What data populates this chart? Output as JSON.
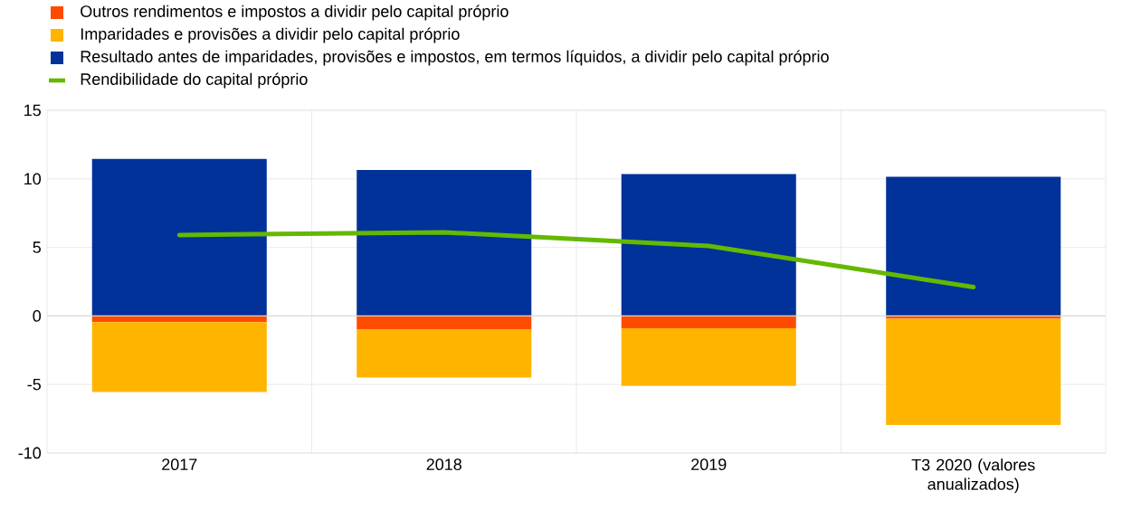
{
  "chart_data": {
    "type": "bar",
    "stacked": true,
    "categories": [
      "2017",
      "2018",
      "2019",
      "T3 2020 (valores anualizados)"
    ],
    "series": [
      {
        "name": "Outros rendimentos e impostos a dividir pelo capital próprio",
        "color": "#ff4b00",
        "values": [
          -0.45,
          -1.0,
          -0.9,
          -0.2
        ]
      },
      {
        "name": "Imparidades e provisões a dividir pelo capital próprio",
        "color": "#ffb400",
        "values": [
          -5.1,
          -3.5,
          -4.2,
          -7.75
        ]
      },
      {
        "name": "Resultado antes de imparidades, provisões e impostos, em termos líquidos, a dividir pelo capital próprio",
        "color": "#003299",
        "values": [
          11.45,
          10.65,
          10.35,
          10.15
        ]
      },
      {
        "name": "Rendibilidade do capital próprio",
        "color": "#65b800",
        "type": "line",
        "values": [
          5.9,
          6.1,
          5.1,
          2.1
        ]
      }
    ],
    "ylim": [
      -10,
      15
    ],
    "yticks": [
      -10,
      -5,
      0,
      5,
      10,
      15
    ],
    "grid": true,
    "legend": "top",
    "marker": "none",
    "line_style": "solid"
  }
}
